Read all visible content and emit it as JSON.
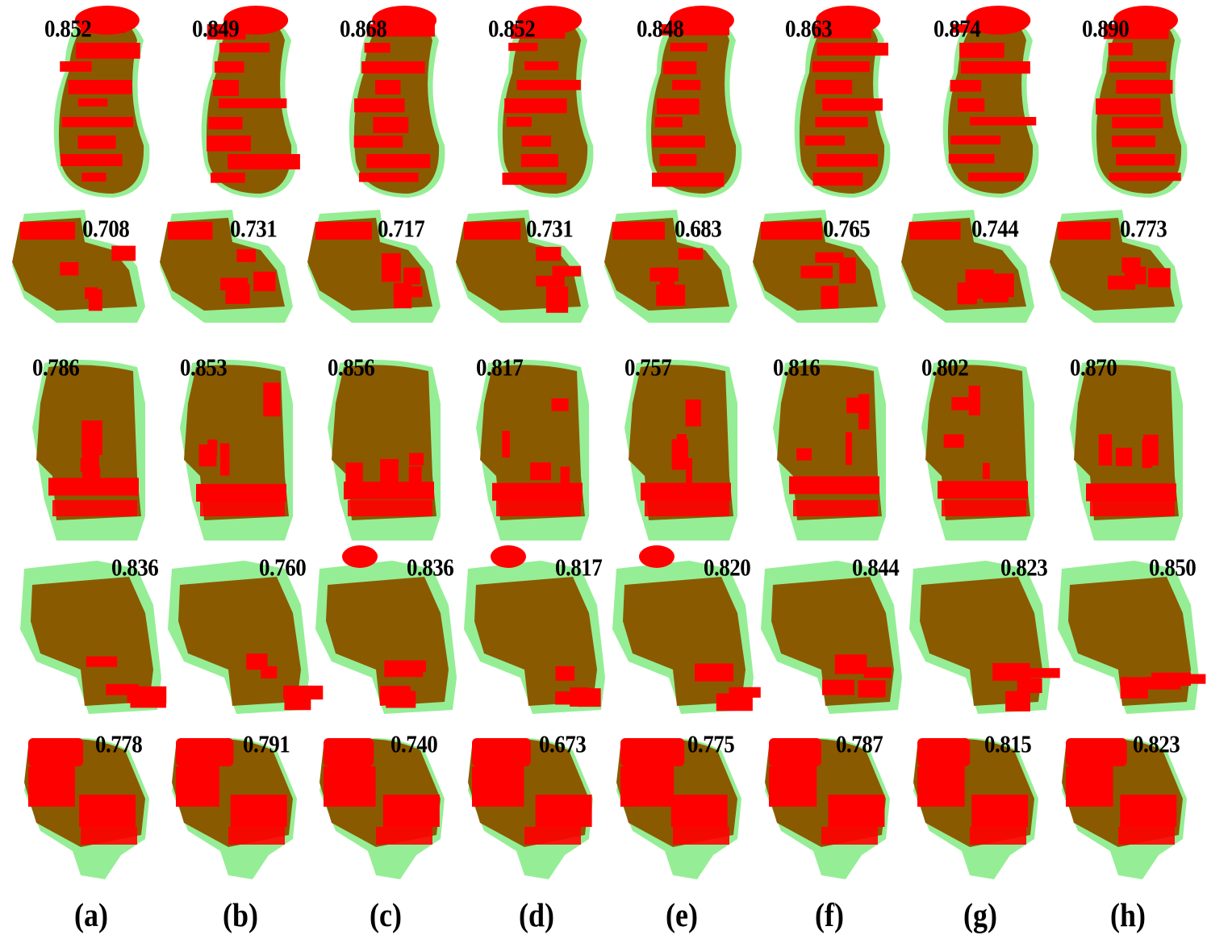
{
  "figure": {
    "description": "3D segmentation overlays: predicted (red) vs ground truth (translucent green), overlap brownish; Dice scores shown per cell",
    "colors": {
      "prediction": "#ff0000",
      "ground_truth": "#3ee03e",
      "overlap": "#8a5a00",
      "text": "#000000",
      "background": "#ffffff"
    },
    "column_labels": [
      "(a)",
      "(b)",
      "(c)",
      "(d)",
      "(e)",
      "(f)",
      "(g)",
      "(h)"
    ],
    "rows": [
      {
        "shape": "elongated-curved",
        "scores": [
          "0.852",
          "0.849",
          "0.868",
          "0.852",
          "0.848",
          "0.863",
          "0.874",
          "0.890"
        ]
      },
      {
        "shape": "flat-stepped",
        "scores": [
          "0.708",
          "0.731",
          "0.717",
          "0.731",
          "0.683",
          "0.765",
          "0.744",
          "0.773"
        ]
      },
      {
        "shape": "block-column",
        "scores": [
          "0.786",
          "0.853",
          "0.856",
          "0.817",
          "0.757",
          "0.816",
          "0.802",
          "0.870"
        ]
      },
      {
        "shape": "lumpy-mass",
        "scores": [
          "0.836",
          "0.760",
          "0.836",
          "0.817",
          "0.820",
          "0.844",
          "0.823",
          "0.850"
        ]
      },
      {
        "shape": "rounded-lobed",
        "scores": [
          "0.778",
          "0.791",
          "0.740",
          "0.673",
          "0.775",
          "0.787",
          "0.815",
          "0.823"
        ]
      }
    ]
  },
  "chart_data": {
    "type": "table",
    "title": "Dice scores per case (rows) and method (columns)",
    "columns": [
      "(a)",
      "(b)",
      "(c)",
      "(d)",
      "(e)",
      "(f)",
      "(g)",
      "(h)"
    ],
    "rows": [
      [
        0.852,
        0.849,
        0.868,
        0.852,
        0.848,
        0.863,
        0.874,
        0.89
      ],
      [
        0.708,
        0.731,
        0.717,
        0.731,
        0.683,
        0.765,
        0.744,
        0.773
      ],
      [
        0.786,
        0.853,
        0.856,
        0.817,
        0.757,
        0.816,
        0.802,
        0.87
      ],
      [
        0.836,
        0.76,
        0.836,
        0.817,
        0.82,
        0.844,
        0.823,
        0.85
      ],
      [
        0.778,
        0.791,
        0.74,
        0.673,
        0.775,
        0.787,
        0.815,
        0.823
      ]
    ]
  }
}
